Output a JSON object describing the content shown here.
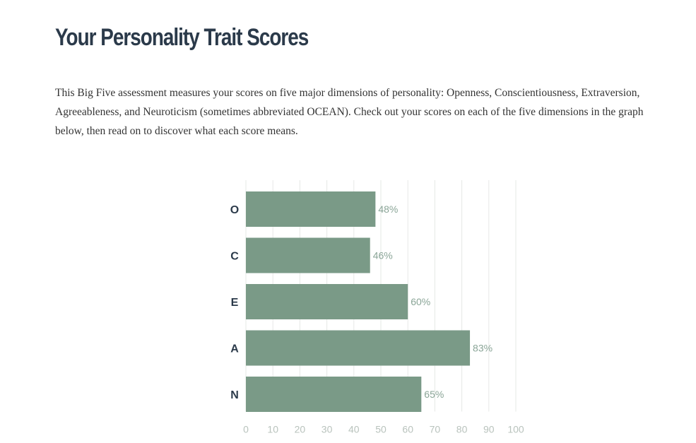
{
  "page": {
    "title": "Your Personality Trait Scores",
    "intro": "This Big Five assessment measures your scores on five major dimensions of personality: Openness, Conscientiousness, Extraversion, Agreeableness, and Neuroticism (sometimes abbreviated OCEAN). Check out your scores on each of the five dimensions in the graph below, then read on to discover what each score means."
  },
  "chart_data": {
    "type": "bar",
    "orientation": "horizontal",
    "categories": [
      "O",
      "C",
      "E",
      "A",
      "N"
    ],
    "values": [
      48,
      46,
      60,
      83,
      65
    ],
    "value_labels": [
      "48%",
      "46%",
      "60%",
      "83%",
      "65%"
    ],
    "xlim": [
      0,
      100
    ],
    "xticks": [
      0,
      10,
      20,
      30,
      40,
      50,
      60,
      70,
      80,
      90,
      100
    ],
    "grid": true,
    "legend": "none",
    "colors": {
      "bar": "#7a9a87",
      "value_label": "#8aa597",
      "tick_label": "#b9c3bd",
      "grid": "#e6e8e6"
    }
  }
}
